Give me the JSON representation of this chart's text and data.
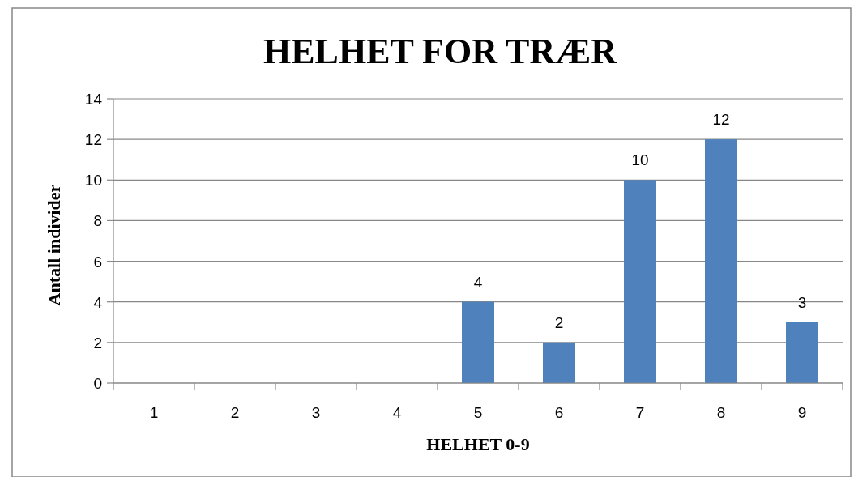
{
  "chart_data": {
    "type": "bar",
    "title": "HELHET FOR TRÆR",
    "xlabel": "HELHET 0-9",
    "ylabel": "Antall individer",
    "categories": [
      "1",
      "2",
      "3",
      "4",
      "5",
      "6",
      "7",
      "8",
      "9"
    ],
    "values": [
      0,
      0,
      0,
      0,
      4,
      2,
      10,
      12,
      3
    ],
    "value_labels": [
      null,
      null,
      null,
      null,
      "4",
      "2",
      "10",
      "12",
      "3"
    ],
    "color": "#4f81bd",
    "ylim": [
      0,
      14
    ],
    "yticks": [
      0,
      2,
      4,
      6,
      8,
      10,
      12,
      14
    ],
    "grid": "y"
  }
}
